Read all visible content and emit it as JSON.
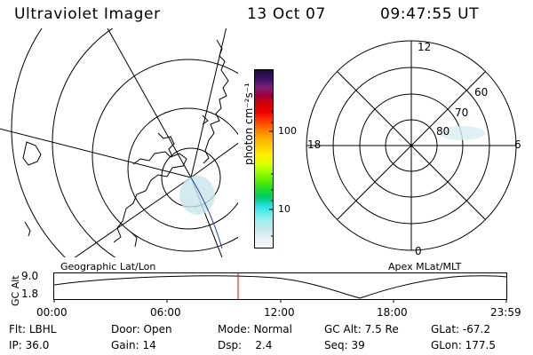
{
  "header": {
    "title": "Ultraviolet Imager",
    "date": "13 Oct 07",
    "time": "09:47:55 UT"
  },
  "geo_panel": {
    "label": "Geographic Lat/Lon"
  },
  "colorbar": {
    "unit_label": "photon cm⁻²s⁻¹",
    "tick_labels": [
      "100",
      "10"
    ],
    "colors": [
      "#1a0d33",
      "#3c0f66",
      "#7a1e7a",
      "#a0003c",
      "#d20000",
      "#f00000",
      "#ff3a00",
      "#ff7800",
      "#ffaa00",
      "#ffcc00",
      "#ffee00",
      "#e0ff00",
      "#a0ff00",
      "#60ee00",
      "#22dd22",
      "#00cc66",
      "#22dddd",
      "#66eeee",
      "#aaeeee",
      "#cce8ee",
      "#e8f2f4",
      "#f4f8fa"
    ]
  },
  "apex_panel": {
    "label": "Apex MLat/MLT",
    "mlt_labels": {
      "top": "12",
      "right": "6",
      "bottom": "0",
      "left": "18"
    },
    "lat_labels": [
      "60",
      "70",
      "80"
    ]
  },
  "altitude_strip": {
    "ylabel": "GC Alt",
    "y_ticks": [
      "9.0",
      "1.8"
    ],
    "x_ticks": [
      "00:00",
      "06:00",
      "12:00",
      "18:00",
      "23:59"
    ],
    "marker_color": "#dd0000"
  },
  "info": {
    "row1": [
      {
        "label": "Flt:",
        "value": "LBHL"
      },
      {
        "label": "Door:",
        "value": "Open"
      },
      {
        "label": "Mode:",
        "value": "Normal"
      },
      {
        "label": "GC Alt:",
        "value": "7.5 Re"
      },
      {
        "label": "GLat:",
        "value": "-67.2"
      }
    ],
    "row2": [
      {
        "label": "IP:",
        "value": "36.0"
      },
      {
        "label": "Gain:",
        "value": "14"
      },
      {
        "label": "Dsp:",
        "value": "2.4"
      },
      {
        "label": "Seq:",
        "value": "39"
      },
      {
        "label": "GLon:",
        "value": "177.5"
      }
    ]
  }
}
